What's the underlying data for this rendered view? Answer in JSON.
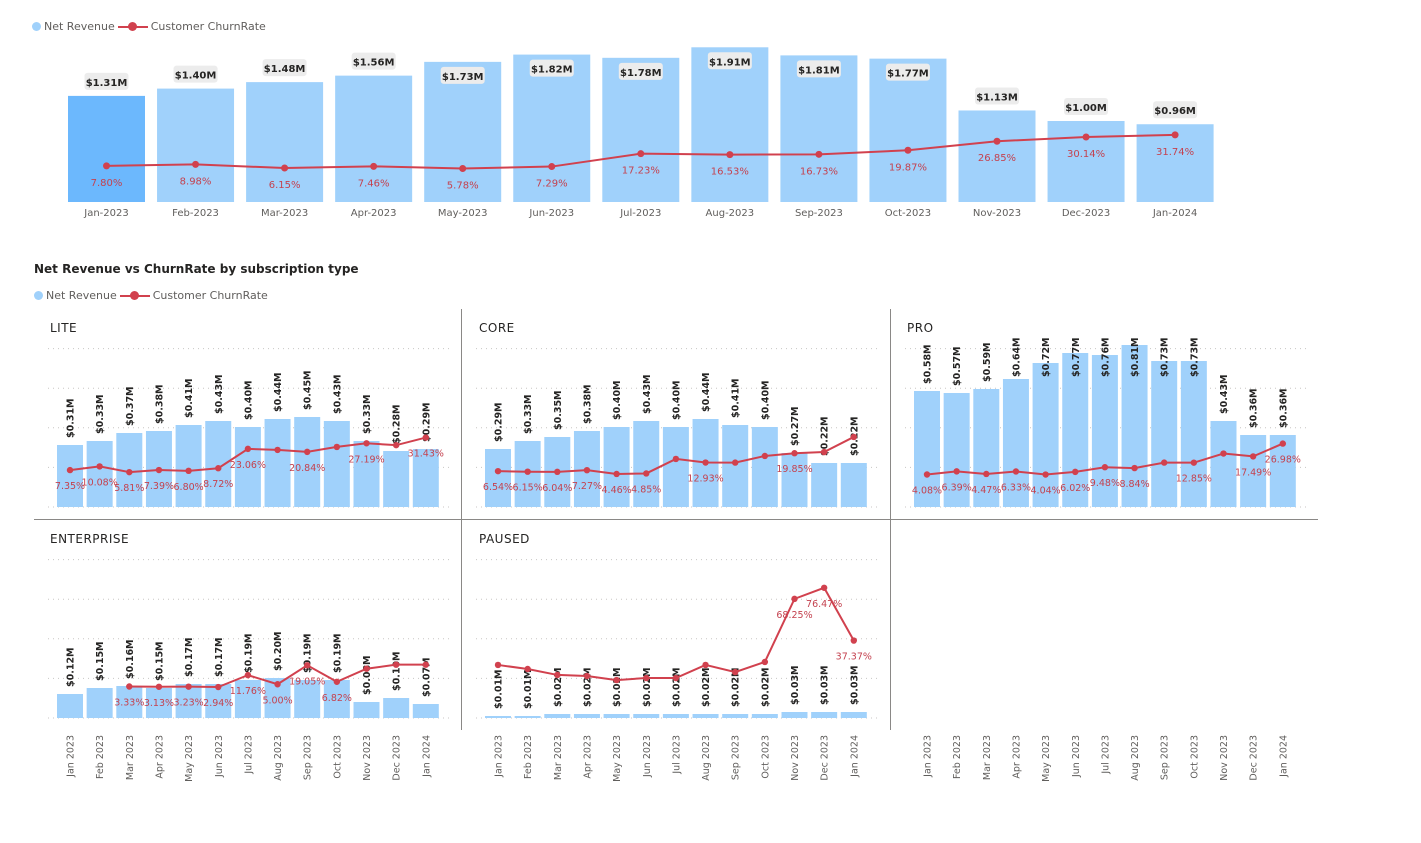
{
  "legend": {
    "revenue": "Net Revenue",
    "churn": "Customer ChurnRate"
  },
  "colors": {
    "bar": "#a0d1fb",
    "bar_highlight": "#6cb8fd",
    "line": "#d1414e",
    "churn_label": "#c4424f",
    "label_box": "#ececec"
  },
  "chart_data": [
    {
      "type": "bar+line",
      "categories": [
        "Jan-2023",
        "Feb-2023",
        "Mar-2023",
        "Apr-2023",
        "May-2023",
        "Jun-2023",
        "Jul-2023",
        "Aug-2023",
        "Sep-2023",
        "Oct-2023",
        "Nov-2023",
        "Dec-2023",
        "Jan-2024"
      ],
      "highlighted_category": "Jan-2023",
      "series": [
        {
          "name": "Net Revenue",
          "unit": "$M",
          "values": [
            1.31,
            1.4,
            1.48,
            1.56,
            1.73,
            1.82,
            1.78,
            1.91,
            1.81,
            1.77,
            1.13,
            1.0,
            0.96
          ],
          "labels": [
            "$1.31M",
            "$1.40M",
            "$1.48M",
            "$1.56M",
            "$1.73M",
            "$1.82M",
            "$1.78M",
            "$1.91M",
            "$1.81M",
            "$1.77M",
            "$1.13M",
            "$1.00M",
            "$0.96M"
          ]
        },
        {
          "name": "Customer ChurnRate",
          "unit": "%",
          "values": [
            7.8,
            8.98,
            6.15,
            7.46,
            5.78,
            7.29,
            17.23,
            16.53,
            16.73,
            19.87,
            26.85,
            30.14,
            31.74
          ],
          "labels": [
            "7.80%",
            "8.98%",
            "6.15%",
            "7.46%",
            "5.78%",
            "7.29%",
            "17.23%",
            "16.53%",
            "16.73%",
            "19.87%",
            "26.85%",
            "30.14%",
            "31.74%"
          ]
        }
      ],
      "legend": "top-left",
      "grid": false
    },
    {
      "type": "bar+line small multiples",
      "title": "Net Revenue vs ChurnRate by subscription type",
      "categories": [
        "Jan 2023",
        "Feb 2023",
        "Mar 2023",
        "Apr 2023",
        "May 2023",
        "Jun 2023",
        "Jul 2023",
        "Aug 2023",
        "Sep 2023",
        "Oct 2023",
        "Nov 2023",
        "Dec 2023",
        "Jan 2024"
      ],
      "legend": "top-left",
      "grid": true,
      "panels": [
        {
          "name": "LITE",
          "revenue": [
            0.31,
            0.33,
            0.37,
            0.38,
            0.41,
            0.43,
            0.4,
            0.44,
            0.45,
            0.43,
            0.33,
            0.28,
            0.29
          ],
          "revenue_labels": [
            "$0.31M",
            "$0.33M",
            "$0.37M",
            "$0.38M",
            "$0.41M",
            "$0.43M",
            "$0.40M",
            "$0.44M",
            "$0.45M",
            "$0.43M",
            "$0.33M",
            "$0.28M",
            "$0.29M"
          ],
          "churn": [
            7.35,
            10.08,
            5.81,
            7.39,
            6.8,
            8.72,
            23.06,
            22.3,
            20.84,
            24.5,
            27.19,
            25.8,
            31.43
          ],
          "churn_labels": [
            "7.35%",
            "10.08%",
            "5.81%",
            "7.39%",
            "6.80%",
            "8.72%",
            "23.06%",
            "",
            "20.84%",
            "",
            "27.19%",
            "",
            "31.43%"
          ]
        },
        {
          "name": "CORE",
          "revenue": [
            0.29,
            0.33,
            0.35,
            0.38,
            0.4,
            0.43,
            0.4,
            0.44,
            0.41,
            0.4,
            0.27,
            0.22,
            0.22
          ],
          "revenue_labels": [
            "$0.29M",
            "$0.33M",
            "$0.35M",
            "$0.38M",
            "$0.40M",
            "$0.43M",
            "$0.40M",
            "$0.44M",
            "$0.41M",
            "$0.40M",
            "$0.27M",
            "$0.22M",
            "$0.22M"
          ],
          "churn": [
            6.54,
            6.15,
            6.04,
            7.27,
            4.46,
            4.85,
            15.6,
            12.93,
            12.9,
            17.8,
            19.85,
            20.7,
            31.9
          ],
          "churn_labels": [
            "6.54%",
            "6.15%",
            "6.04%",
            "7.27%",
            "4.46%",
            "4.85%",
            "",
            "12.93%",
            "",
            "",
            "19.85%",
            "",
            ""
          ]
        },
        {
          "name": "PRO",
          "revenue": [
            0.58,
            0.57,
            0.59,
            0.64,
            0.72,
            0.77,
            0.76,
            0.81,
            0.73,
            0.73,
            0.43,
            0.36,
            0.36
          ],
          "revenue_labels": [
            "$0.58M",
            "$0.57M",
            "$0.59M",
            "$0.64M",
            "$0.72M",
            "$0.77M",
            "$0.76M",
            "$0.81M",
            "$0.73M",
            "$0.73M",
            "$0.43M",
            "$0.36M",
            "$0.36M"
          ],
          "churn": [
            4.08,
            6.39,
            4.47,
            6.33,
            4.04,
            6.02,
            9.48,
            8.84,
            12.9,
            12.85,
            19.6,
            17.49,
            26.98
          ],
          "churn_labels": [
            "4.08%",
            "6.39%",
            "4.47%",
            "6.33%",
            "4.04%",
            "6.02%",
            "9.48%",
            "8.84%",
            "",
            "12.85%",
            "",
            "17.49%",
            "26.98%"
          ]
        },
        {
          "name": "ENTERPRISE",
          "revenue": [
            0.12,
            0.15,
            0.16,
            0.15,
            0.17,
            0.17,
            0.19,
            0.2,
            0.19,
            0.19,
            0.08,
            0.1,
            0.07
          ],
          "revenue_labels": [
            "$0.12M",
            "$0.15M",
            "$0.16M",
            "$0.15M",
            "$0.17M",
            "$0.17M",
            "$0.19M",
            "$0.20M",
            "$0.19M",
            "$0.19M",
            "$0.08M",
            "$0.10M",
            "$0.07M"
          ],
          "churn": [
            null,
            null,
            3.33,
            3.13,
            3.23,
            2.94,
            11.76,
            5.0,
            19.05,
            6.82,
            16.5,
            19.5,
            19.5
          ],
          "churn_labels": [
            "",
            "",
            "3.33%",
            "3.13%",
            "3.23%",
            "2.94%",
            "11.76%",
            "5.00%",
            "19.05%",
            "6.82%",
            "",
            "",
            ""
          ]
        },
        {
          "name": "PAUSED",
          "revenue": [
            0.01,
            0.01,
            0.02,
            0.02,
            0.02,
            0.02,
            0.02,
            0.02,
            0.02,
            0.02,
            0.03,
            0.03,
            0.03
          ],
          "revenue_labels": [
            "$0.01M",
            "$0.01M",
            "$0.02M",
            "$0.02M",
            "$0.02M",
            "$0.02M",
            "$0.02M",
            "$0.02M",
            "$0.02M",
            "$0.02M",
            "$0.03M",
            "$0.03M",
            "$0.03M"
          ],
          "churn": [
            19.3,
            16.3,
            11.9,
            11.1,
            8.1,
            9.6,
            9.6,
            19.3,
            14.0,
            21.5,
            68.25,
            76.47,
            37.37
          ],
          "churn_labels": [
            "",
            "",
            "",
            "",
            "",
            "",
            "",
            "",
            "",
            "",
            "68.25%",
            "76.47%",
            "37.37%"
          ]
        }
      ]
    }
  ]
}
